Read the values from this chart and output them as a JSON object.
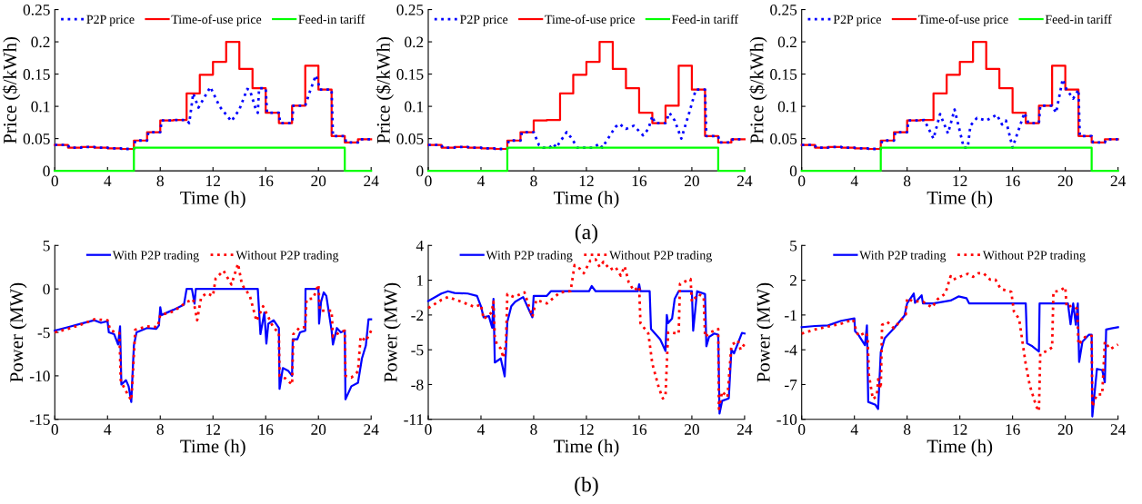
{
  "chart_data": [
    {
      "type": "line",
      "xlabel": "Time (h)",
      "ylabel": "Price ($/kWh)",
      "xlim": [
        0,
        24
      ],
      "xticks": [
        0,
        4,
        8,
        12,
        16,
        20,
        24
      ],
      "ylim": [
        0,
        0.25
      ],
      "yticks": [
        0,
        0.05,
        0.1,
        0.15,
        0.2,
        0.25
      ],
      "legend": "top",
      "grid": false,
      "series": [
        {
          "name": "P2P price",
          "type": "line",
          "line_style": "dotted",
          "color": "#0000ff",
          "x": [
            0,
            1,
            1.1,
            2,
            2.1,
            3,
            3.1,
            4,
            4.1,
            5,
            5.1,
            6,
            6.1,
            7,
            7.1,
            8,
            8.1,
            9,
            9.1,
            10,
            10.2,
            10.5,
            10.9,
            11.8,
            12.5,
            13.4,
            14,
            14.6,
            14.8,
            15.3,
            15.4,
            15.5,
            16,
            16.1,
            17,
            17.1,
            18,
            18.1,
            19,
            19.3,
            19.8,
            20,
            20.1,
            21,
            21.1,
            22,
            22.1,
            23,
            23.1,
            24
          ],
          "values": [
            0.04,
            0.04,
            0.036,
            0.036,
            0.037,
            0.037,
            0.036,
            0.036,
            0.035,
            0.035,
            0.034,
            0.034,
            0.047,
            0.047,
            0.06,
            0.06,
            0.078,
            0.078,
            0.079,
            0.079,
            0.074,
            0.12,
            0.098,
            0.13,
            0.1,
            0.077,
            0.095,
            0.127,
            0.125,
            0.092,
            0.09,
            0.128,
            0.128,
            0.09,
            0.09,
            0.074,
            0.074,
            0.101,
            0.101,
            0.12,
            0.148,
            0.135,
            0.126,
            0.126,
            0.054,
            0.054,
            0.044,
            0.044,
            0.049,
            0.049
          ]
        },
        {
          "name": "Time-of-use price",
          "type": "step",
          "line_style": "solid",
          "color": "#ff0000",
          "x": [
            0,
            1,
            2,
            3,
            4,
            5,
            6,
            7,
            8,
            9,
            10,
            11,
            12,
            13,
            14,
            15,
            16,
            17,
            18,
            19,
            20,
            21,
            22,
            23,
            24
          ],
          "values": [
            0.04,
            0.036,
            0.037,
            0.036,
            0.035,
            0.034,
            0.047,
            0.06,
            0.078,
            0.079,
            0.12,
            0.149,
            0.169,
            0.2,
            0.158,
            0.128,
            0.09,
            0.074,
            0.101,
            0.163,
            0.126,
            0.054,
            0.044,
            0.049,
            0.049
          ]
        },
        {
          "name": "Feed-in tariff",
          "type": "step",
          "line_style": "solid",
          "color": "#00ff00",
          "x": [
            0,
            6,
            22,
            24
          ],
          "values": [
            0,
            0.036,
            0,
            0
          ]
        }
      ]
    },
    {
      "type": "line",
      "xlabel": "Time (h)",
      "ylabel": "Price ($/kWh)",
      "xlim": [
        0,
        24
      ],
      "xticks": [
        0,
        4,
        8,
        12,
        16,
        20,
        24
      ],
      "ylim": [
        0,
        0.25
      ],
      "yticks": [
        0,
        0.05,
        0.1,
        0.15,
        0.2,
        0.25
      ],
      "legend": "top",
      "grid": false,
      "annotations": [
        "(a)"
      ],
      "series": [
        {
          "name": "P2P price",
          "type": "line",
          "line_style": "dotted",
          "color": "#0000ff",
          "x": [
            0,
            1,
            1.1,
            2,
            2.1,
            3,
            3.1,
            4,
            4.1,
            5,
            5.1,
            6,
            6.1,
            7,
            7.1,
            8,
            8.4,
            8.7,
            9.2,
            9.5,
            9.7,
            10.5,
            10.9,
            11.3,
            12.5,
            13,
            13.2,
            14.2,
            14.5,
            15,
            15.6,
            16.3,
            16.7,
            17,
            17.2,
            18,
            18.3,
            18.7,
            19.2,
            19.8,
            20.3,
            21,
            21.1,
            22,
            22.1,
            23,
            23.1,
            24
          ],
          "values": [
            0.04,
            0.04,
            0.036,
            0.036,
            0.037,
            0.037,
            0.036,
            0.036,
            0.035,
            0.035,
            0.034,
            0.034,
            0.047,
            0.047,
            0.06,
            0.06,
            0.04,
            0.036,
            0.036,
            0.042,
            0.036,
            0.06,
            0.05,
            0.036,
            0.036,
            0.042,
            0.036,
            0.068,
            0.073,
            0.065,
            0.07,
            0.055,
            0.065,
            0.085,
            0.074,
            0.074,
            0.09,
            0.078,
            0.05,
            0.09,
            0.126,
            0.126,
            0.054,
            0.054,
            0.044,
            0.044,
            0.049,
            0.049
          ]
        },
        {
          "name": "Time-of-use price",
          "type": "step",
          "line_style": "solid",
          "color": "#ff0000",
          "x": [
            0,
            1,
            2,
            3,
            4,
            5,
            6,
            7,
            8,
            9,
            10,
            11,
            12,
            13,
            14,
            15,
            16,
            17,
            18,
            19,
            20,
            21,
            22,
            23,
            24
          ],
          "values": [
            0.04,
            0.036,
            0.037,
            0.036,
            0.035,
            0.034,
            0.047,
            0.06,
            0.078,
            0.079,
            0.12,
            0.149,
            0.169,
            0.2,
            0.158,
            0.128,
            0.09,
            0.074,
            0.101,
            0.163,
            0.126,
            0.054,
            0.044,
            0.049,
            0.049
          ]
        },
        {
          "name": "Feed-in tariff",
          "type": "step",
          "line_style": "solid",
          "color": "#00ff00",
          "x": [
            0,
            6,
            22,
            24
          ],
          "values": [
            0,
            0.036,
            0,
            0
          ]
        }
      ]
    },
    {
      "type": "line",
      "xlabel": "Time (h)",
      "ylabel": "Price ($/kWh)",
      "xlim": [
        0,
        24
      ],
      "xticks": [
        0,
        4,
        8,
        12,
        16,
        20,
        24
      ],
      "ylim": [
        0,
        0.25
      ],
      "yticks": [
        0,
        0.05,
        0.1,
        0.15,
        0.2,
        0.25
      ],
      "legend": "top",
      "grid": false,
      "series": [
        {
          "name": "P2P price",
          "type": "line",
          "line_style": "dotted",
          "color": "#0000ff",
          "x": [
            0,
            1,
            1.1,
            2,
            2.1,
            3,
            3.1,
            4,
            4.1,
            5,
            5.1,
            6,
            6.1,
            7,
            7.1,
            8,
            8.1,
            9,
            9.3,
            10,
            10.5,
            11.1,
            11.6,
            12.3,
            12.6,
            12.8,
            13.3,
            14,
            14.8,
            15.2,
            15.5,
            16,
            16.4,
            16.9,
            17.2,
            18,
            18.1,
            19,
            19.3,
            19.8,
            20.1,
            20.6,
            21,
            21.1,
            22,
            22.1,
            23,
            23.1,
            24
          ],
          "values": [
            0.04,
            0.04,
            0.036,
            0.036,
            0.037,
            0.037,
            0.036,
            0.036,
            0.035,
            0.035,
            0.034,
            0.034,
            0.047,
            0.047,
            0.06,
            0.06,
            0.078,
            0.078,
            0.079,
            0.05,
            0.088,
            0.058,
            0.095,
            0.036,
            0.036,
            0.07,
            0.082,
            0.078,
            0.087,
            0.072,
            0.078,
            0.036,
            0.06,
            0.09,
            0.074,
            0.074,
            0.101,
            0.101,
            0.09,
            0.142,
            0.126,
            0.112,
            0.126,
            0.054,
            0.054,
            0.044,
            0.044,
            0.049,
            0.049
          ]
        },
        {
          "name": "Time-of-use price",
          "type": "step",
          "line_style": "solid",
          "color": "#ff0000",
          "x": [
            0,
            1,
            2,
            3,
            4,
            5,
            6,
            7,
            8,
            9,
            10,
            11,
            12,
            13,
            14,
            15,
            16,
            17,
            18,
            19,
            20,
            21,
            22,
            23,
            24
          ],
          "values": [
            0.04,
            0.036,
            0.037,
            0.036,
            0.035,
            0.034,
            0.047,
            0.06,
            0.078,
            0.079,
            0.12,
            0.149,
            0.169,
            0.2,
            0.158,
            0.128,
            0.09,
            0.074,
            0.101,
            0.163,
            0.126,
            0.054,
            0.044,
            0.049,
            0.049
          ]
        },
        {
          "name": "Feed-in tariff",
          "type": "step",
          "line_style": "solid",
          "color": "#00ff00",
          "x": [
            0,
            6,
            22,
            24
          ],
          "values": [
            0,
            0.036,
            0,
            0
          ]
        }
      ]
    },
    {
      "type": "line",
      "xlabel": "Time (h)",
      "ylabel": "Power (MW)",
      "xlim": [
        0,
        24
      ],
      "xticks": [
        0,
        4,
        8,
        12,
        16,
        20,
        24
      ],
      "ylim": [
        -15,
        5
      ],
      "yticks": [
        -15,
        -10,
        -5,
        0,
        5
      ],
      "legend": "top",
      "grid": false,
      "series": [
        {
          "name": "With P2P trading",
          "type": "line",
          "line_style": "solid",
          "color": "#0000ff",
          "x": [
            0,
            1,
            2,
            3,
            3.5,
            4,
            4.1,
            4.5,
            4.8,
            4.95,
            5.05,
            5.4,
            5.6,
            5.8,
            6.0,
            6.2,
            7,
            7.7,
            7.9,
            8.0,
            8.1,
            9,
            9.8,
            10,
            10.4,
            10.6,
            10.7,
            15.4,
            15.6,
            15.9,
            16.05,
            16.2,
            16.6,
            17,
            17.05,
            17.3,
            17.7,
            18,
            18.05,
            18.4,
            18.6,
            19,
            19.02,
            20,
            20.05,
            20.2,
            20.4,
            20.6,
            21,
            21.1,
            21.4,
            21.7,
            22,
            22.05,
            22.5,
            23,
            23.3,
            23.6,
            23.8,
            24
          ],
          "values": [
            -4.8,
            -4.4,
            -4.0,
            -3.6,
            -3.9,
            -3.7,
            -5.0,
            -5.2,
            -6.4,
            -4.3,
            -11,
            -10.5,
            -11.2,
            -13.0,
            -6.5,
            -5.0,
            -4.5,
            -4.6,
            -4.2,
            -2.1,
            -3.0,
            -2.4,
            -1.8,
            0,
            0,
            -1.7,
            0,
            0,
            -5.2,
            -2.7,
            -6.3,
            -4.0,
            -3.6,
            -4.5,
            -11.5,
            -9.1,
            -9.4,
            -10.0,
            -5.8,
            -5.8,
            -5.0,
            -4.8,
            0,
            0,
            -4.0,
            -1.5,
            -0.4,
            -0.8,
            -4.8,
            -6.4,
            -4.5,
            -5.0,
            -4.8,
            -12.7,
            -11.2,
            -10.8,
            -8.0,
            -6.5,
            -3.5,
            -3.5
          ]
        },
        {
          "name": "Without P2P trading",
          "type": "line",
          "line_style": "dotted",
          "color": "#ff0000",
          "x": [
            0,
            1,
            2,
            3,
            4,
            4.2,
            4.6,
            4.9,
            5.0,
            5.3,
            5.6,
            5.8,
            5.9,
            6.1,
            7,
            7.8,
            8,
            9,
            10,
            10.5,
            10.8,
            11.1,
            11.5,
            12,
            12.2,
            12.8,
            13.4,
            13.9,
            14.2,
            14.8,
            15.3,
            15.8,
            16.6,
            17,
            17.05,
            17.5,
            18,
            18.1,
            18.6,
            19,
            19.1,
            19.6,
            20,
            20.1,
            21,
            21.1,
            21.6,
            22,
            22.05,
            22.5,
            23,
            23.2,
            23.6,
            24
          ],
          "values": [
            -5.0,
            -4.6,
            -4.1,
            -3.5,
            -3.6,
            -4.7,
            -5.0,
            -5.1,
            -10.5,
            -11.5,
            -12.3,
            -12.8,
            -10.4,
            -4.7,
            -4.3,
            -4.4,
            -3.0,
            -2.6,
            -1.5,
            -1.2,
            -3.6,
            -1.0,
            -0.5,
            -0.8,
            1.2,
            2.1,
            0.5,
            2.9,
            0.5,
            -0.8,
            -3.7,
            -2.0,
            -4.5,
            -5.0,
            -10.0,
            -10.3,
            -11.0,
            -5.2,
            -4.4,
            -4.4,
            -1.2,
            -1.1,
            0.5,
            -2.5,
            -2.5,
            -5.5,
            -5.0,
            -4.8,
            -10.0,
            -10.2,
            -9.5,
            -5.5,
            -6.0,
            -4.8
          ]
        }
      ]
    },
    {
      "type": "line",
      "xlabel": "Time (h)",
      "ylabel": "Power (MW)",
      "xlim": [
        0,
        24
      ],
      "xticks": [
        0,
        4,
        8,
        12,
        16,
        20,
        24
      ],
      "ylim": [
        -11,
        4
      ],
      "yticks": [
        -11,
        -8,
        -5,
        -2,
        1,
        4
      ],
      "legend": "top",
      "grid": false,
      "annotations": [
        "(b)"
      ],
      "series": [
        {
          "name": "With P2P trading",
          "type": "line",
          "line_style": "solid",
          "color": "#0000ff",
          "x": [
            0,
            1,
            1.5,
            2,
            3,
            3.7,
            4,
            4.2,
            4.6,
            4.85,
            4.95,
            5.05,
            5.5,
            5.8,
            6.0,
            6.3,
            6.6,
            7.2,
            7.9,
            8.0,
            9,
            9.3,
            12.2,
            12.4,
            12.7,
            15.9,
            16.0,
            16.1,
            16.8,
            16.9,
            17.6,
            18,
            18.1,
            18.2,
            18.5,
            18.7,
            19,
            20,
            20.1,
            20.4,
            21,
            21.1,
            21.3,
            21.7,
            22,
            22.1,
            22.3,
            22.8,
            23.0,
            23.2,
            23.8,
            24
          ],
          "values": [
            -0.8,
            -0.15,
            0.05,
            -0.1,
            -0.15,
            -0.35,
            -1.25,
            -2.2,
            -2.1,
            -3.1,
            -0.6,
            -6.1,
            -5.75,
            -7.3,
            -2.6,
            -1.25,
            -0.85,
            -0.45,
            -2.2,
            -0.35,
            -0.35,
            0.05,
            0.05,
            0.5,
            0.05,
            0.05,
            0.65,
            0.05,
            0.05,
            -3.2,
            -4.1,
            -5.1,
            -2.0,
            -2.7,
            -2.3,
            -0.6,
            0.05,
            0.05,
            -3.35,
            0.05,
            -0.2,
            -4.7,
            -3.9,
            -3.6,
            -3.7,
            -10.5,
            -9.4,
            -9.2,
            -5.0,
            -5.3,
            -3.55,
            -3.6
          ]
        },
        {
          "name": "Without P2P trading",
          "type": "line",
          "line_style": "dotted",
          "color": "#ff0000",
          "x": [
            0,
            1,
            1.5,
            2.5,
            3.5,
            4,
            4.2,
            4.8,
            4.95,
            5.05,
            5.2,
            5.5,
            5.7,
            5.9,
            6.0,
            6.5,
            7.3,
            7.9,
            8.2,
            9,
            10,
            10.8,
            11.1,
            11.5,
            11.8,
            12.3,
            12.7,
            13,
            13.3,
            13.8,
            14.2,
            14.6,
            14.9,
            15.2,
            15.6,
            16,
            16.1,
            16.7,
            17,
            17.5,
            17.8,
            18,
            18.2,
            19,
            19.1,
            19.9,
            20,
            20.5,
            20.9,
            21,
            21.4,
            22,
            22.05,
            22.3,
            22.7,
            23,
            23.5,
            23.7,
            24
          ],
          "values": [
            -1.4,
            -0.7,
            -0.45,
            -0.85,
            -1.3,
            -1.1,
            -2.35,
            -1.8,
            -0.85,
            -3.9,
            -4.5,
            -4.9,
            -5.7,
            -4.4,
            -0.2,
            -0.45,
            -0.05,
            -2.15,
            -0.7,
            -1.0,
            -0.05,
            0.05,
            2.3,
            2.0,
            1.6,
            2.7,
            2.8,
            2.15,
            2.6,
            1.9,
            2.15,
            1.4,
            2.2,
            0.85,
            0.1,
            0.45,
            -2.7,
            -3.6,
            -6.2,
            -8.3,
            -9.2,
            -9.0,
            -3.5,
            -3.6,
            0.7,
            1.1,
            -0.85,
            -0.2,
            -0.45,
            -3.9,
            -3.5,
            -3.2,
            -10.1,
            -8.6,
            -9.1,
            -4.6,
            -4.2,
            -5.0,
            -4.5
          ]
        }
      ]
    },
    {
      "type": "line",
      "xlabel": "Time (h)",
      "ylabel": "Power (MW)",
      "xlim": [
        0,
        24
      ],
      "xticks": [
        0,
        4,
        8,
        12,
        16,
        20,
        24
      ],
      "ylim": [
        -10,
        5
      ],
      "yticks": [
        -10,
        -7,
        -4,
        -1,
        2,
        5
      ],
      "legend": "top",
      "grid": false,
      "series": [
        {
          "name": "With P2P trading",
          "type": "line",
          "line_style": "solid",
          "color": "#0000ff",
          "x": [
            0,
            1,
            2,
            3,
            4,
            4.05,
            4.3,
            4.8,
            4.95,
            5.05,
            5.6,
            5.8,
            6.0,
            6.3,
            7,
            7.8,
            8.0,
            8.5,
            8.6,
            9.1,
            9.2,
            10,
            11.3,
            11.9,
            12.5,
            12.7,
            17,
            17.1,
            17.5,
            18,
            18.05,
            20.2,
            20.4,
            20.6,
            20.8,
            20.95,
            21.05,
            21.3,
            21.8,
            22,
            22.05,
            22.4,
            22.8,
            23,
            23.1,
            23.5,
            24
          ],
          "values": [
            -2.05,
            -1.95,
            -1.9,
            -1.5,
            -1.3,
            -2.4,
            -2.7,
            -3.6,
            -1.9,
            -8.5,
            -8.75,
            -9.1,
            -4.2,
            -3.0,
            -2.15,
            -1.05,
            0,
            0.85,
            0.05,
            0.7,
            0,
            0,
            0.25,
            0.6,
            0.45,
            0,
            0,
            -3.45,
            -3.7,
            -4.15,
            0,
            0,
            -1.8,
            0,
            -1.85,
            0,
            -5.05,
            -3.3,
            -2.7,
            -2.7,
            -9.75,
            -5.65,
            -5.75,
            -6.8,
            -2.25,
            -2.15,
            -2.05
          ]
        },
        {
          "name": "Without P2P trading",
          "type": "line",
          "line_style": "dotted",
          "color": "#ff0000",
          "x": [
            0,
            1,
            2,
            3,
            3.9,
            4.05,
            4.3,
            4.9,
            5.0,
            5.1,
            5.4,
            5.7,
            5.8,
            6.0,
            6.1,
            6.5,
            7,
            7.9,
            8.0,
            8.4,
            9.2,
            9.9,
            10.3,
            10.9,
            11.3,
            11.5,
            12,
            12.6,
            13,
            13.4,
            13.8,
            14.3,
            14.7,
            15.1,
            15.9,
            16.1,
            16.5,
            17,
            17.3,
            17.8,
            18,
            18.1,
            18.6,
            19,
            19.1,
            19.6,
            20,
            20.1,
            20.5,
            20.9,
            21,
            21.5,
            22,
            22.05,
            22.4,
            22.8,
            23,
            23.4,
            24
          ],
          "values": [
            -2.6,
            -2.25,
            -2.0,
            -1.75,
            -1.4,
            -2.0,
            -2.8,
            -2.5,
            -2.9,
            -6.15,
            -8.25,
            -8.0,
            -6.55,
            -7.35,
            -1.85,
            -1.6,
            -2.15,
            -0.95,
            0.45,
            0.2,
            0.15,
            -0.35,
            0.35,
            0.85,
            2.35,
            2.05,
            2.3,
            2.55,
            2.3,
            2.6,
            2.6,
            2.05,
            2.05,
            1.25,
            1.0,
            -0.7,
            -1.35,
            -5.25,
            -7.05,
            -8.9,
            -9.3,
            -4.35,
            -4.1,
            -3.8,
            1.0,
            1.1,
            1.4,
            -0.3,
            -0.2,
            -0.45,
            -3.55,
            -2.9,
            -2.8,
            -8.9,
            -7.85,
            -7.85,
            -3.3,
            -3.95,
            -3.55
          ]
        }
      ]
    }
  ]
}
